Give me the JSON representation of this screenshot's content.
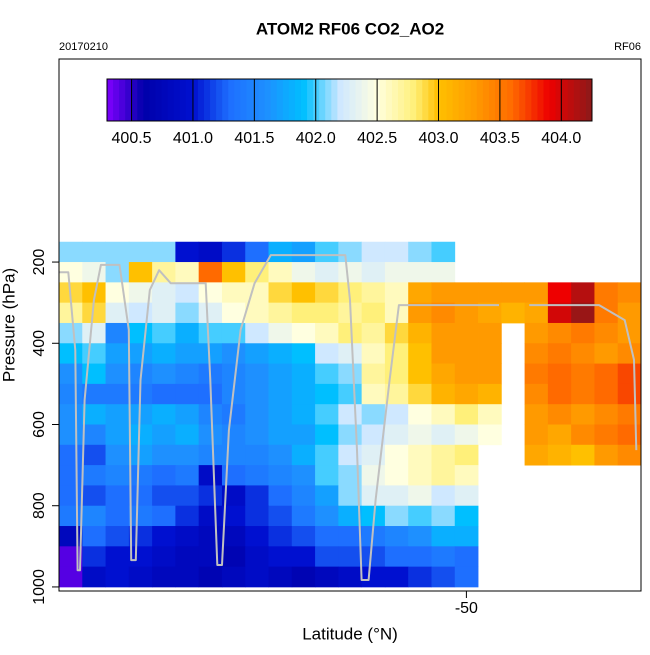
{
  "chart_data": {
    "type": "heatmap",
    "title": "ATOM2 RF06 CO2_AO2",
    "date_label": "20170210",
    "flight_label": "RF06",
    "xlabel": "Latitude (°N)",
    "ylabel": "Pressure (hPa)",
    "xlim": [
      -67.5,
      -42.5
    ],
    "xticks": [
      -50
    ],
    "ylim": [
      1010,
      -300
    ],
    "yticks": [
      200,
      400,
      600,
      800,
      1000
    ],
    "x": [
      -67,
      -66,
      -65,
      -64,
      -63,
      -62,
      -61,
      -60,
      -59,
      -58,
      -57,
      -56,
      -55,
      -54,
      -53,
      -52,
      -51,
      -50,
      -49,
      -48,
      -47,
      -46,
      -45,
      -44,
      -43
    ],
    "y": [
      175,
      225,
      275,
      325,
      375,
      425,
      475,
      525,
      575,
      625,
      675,
      725,
      775,
      825,
      875,
      925,
      975
    ],
    "values": [
      [
        402.1,
        402.1,
        402.1,
        402.1,
        402.1,
        401.0,
        400.9,
        401.1,
        401.3,
        401.8,
        401.7,
        402.0,
        402.1,
        402.2,
        402.2,
        402.1,
        402.0,
        null,
        null,
        null,
        null,
        null,
        null,
        null,
        null
      ],
      [
        402.5,
        402.4,
        402.1,
        403.0,
        402.7,
        402.6,
        403.6,
        403.0,
        402.8,
        402.6,
        402.4,
        402.3,
        402.4,
        402.3,
        402.4,
        402.4,
        402.4,
        null,
        null,
        null,
        null,
        null,
        null,
        null,
        null
      ],
      [
        402.9,
        403.0,
        402.5,
        402.4,
        402.3,
        402.2,
        402.5,
        402.6,
        402.6,
        402.9,
        403.0,
        402.9,
        402.8,
        402.7,
        402.6,
        403.2,
        403.3,
        403.3,
        403.3,
        403.3,
        403.3,
        403.9,
        404.1,
        403.5,
        403.4
      ],
      [
        402.7,
        402.9,
        402.3,
        402.2,
        402.3,
        402.1,
        402.3,
        402.5,
        402.6,
        402.7,
        402.8,
        402.8,
        402.7,
        402.8,
        402.6,
        403.3,
        403.4,
        403.3,
        403.2,
        403.1,
        403.2,
        404.0,
        404.2,
        403.5,
        403.3
      ],
      [
        402.1,
        402.3,
        401.5,
        401.9,
        402.0,
        401.8,
        402.0,
        402.0,
        402.2,
        402.4,
        402.5,
        402.6,
        402.8,
        402.7,
        402.9,
        403.1,
        403.3,
        403.3,
        403.3,
        null,
        403.3,
        403.4,
        403.5,
        403.4,
        403.3
      ],
      [
        401.9,
        402.0,
        401.7,
        401.7,
        401.8,
        401.7,
        401.7,
        401.6,
        401.7,
        401.8,
        401.9,
        402.2,
        402.3,
        402.6,
        402.8,
        403.0,
        403.3,
        403.3,
        403.3,
        null,
        403.4,
        403.5,
        403.4,
        403.3,
        403.4
      ],
      [
        401.6,
        401.9,
        401.6,
        401.5,
        401.6,
        401.5,
        401.4,
        401.5,
        401.6,
        401.7,
        401.8,
        402.0,
        402.1,
        402.7,
        402.8,
        403.0,
        403.2,
        403.3,
        403.3,
        null,
        403.5,
        403.6,
        403.5,
        403.6,
        403.7
      ],
      [
        401.5,
        401.4,
        401.4,
        401.4,
        401.3,
        401.3,
        401.3,
        401.5,
        401.6,
        401.7,
        401.8,
        401.9,
        402.0,
        402.6,
        402.7,
        402.9,
        403.1,
        403.2,
        403.1,
        null,
        403.4,
        403.6,
        403.5,
        403.6,
        403.7
      ],
      [
        401.6,
        401.8,
        401.7,
        401.7,
        401.8,
        401.7,
        401.5,
        401.4,
        401.6,
        401.7,
        401.8,
        402.0,
        402.2,
        402.1,
        402.2,
        402.5,
        402.6,
        402.8,
        402.6,
        null,
        403.3,
        403.4,
        403.3,
        403.4,
        403.5
      ],
      [
        401.6,
        401.5,
        401.7,
        401.8,
        401.7,
        401.8,
        401.6,
        401.5,
        401.6,
        401.7,
        401.7,
        401.9,
        402.1,
        402.2,
        402.3,
        402.4,
        402.3,
        402.4,
        402.5,
        null,
        403.3,
        403.2,
        403.4,
        403.5,
        403.6
      ],
      [
        401.3,
        401.2,
        401.6,
        401.7,
        401.6,
        401.6,
        401.5,
        401.5,
        401.5,
        401.6,
        401.8,
        402.0,
        402.2,
        402.3,
        402.5,
        402.6,
        402.7,
        402.8,
        null,
        null,
        403.2,
        403.1,
        403.0,
        403.3,
        403.4
      ],
      [
        401.3,
        401.4,
        401.5,
        401.4,
        401.3,
        401.4,
        400.9,
        401.3,
        401.4,
        401.5,
        401.6,
        402.0,
        402.1,
        402.4,
        402.5,
        402.6,
        402.7,
        402.6,
        null,
        null,
        null,
        null,
        null,
        null,
        null
      ],
      [
        401.3,
        401.2,
        401.3,
        401.3,
        401.2,
        401.2,
        401.1,
        400.9,
        401.1,
        401.3,
        401.5,
        401.7,
        402.1,
        402.3,
        402.3,
        402.4,
        402.2,
        402.3,
        null,
        null,
        null,
        null,
        null,
        null,
        null
      ],
      [
        401.4,
        401.5,
        401.3,
        401.4,
        401.3,
        401.1,
        400.9,
        401.0,
        401.1,
        401.2,
        401.4,
        401.6,
        401.8,
        401.9,
        402.1,
        402.0,
        402.1,
        401.9,
        null,
        null,
        null,
        null,
        null,
        null,
        null
      ],
      [
        400.8,
        401.3,
        401.2,
        401.1,
        401.0,
        400.9,
        400.8,
        400.8,
        401.0,
        401.1,
        401.2,
        401.3,
        401.3,
        401.4,
        401.5,
        401.6,
        401.8,
        401.8,
        null,
        null,
        null,
        null,
        null,
        null,
        null
      ],
      [
        400.4,
        401.1,
        401.0,
        401.0,
        400.9,
        400.8,
        400.8,
        400.7,
        400.9,
        401.0,
        401.0,
        401.2,
        401.2,
        401.2,
        401.3,
        401.3,
        401.4,
        401.3,
        null,
        null,
        null,
        null,
        null,
        null,
        null
      ],
      [
        400.4,
        400.9,
        401.0,
        400.9,
        400.8,
        400.8,
        400.7,
        400.8,
        400.9,
        400.8,
        400.7,
        400.8,
        400.9,
        401.0,
        401.0,
        401.1,
        401.2,
        401.3,
        null,
        null,
        null,
        null,
        null,
        null,
        null
      ]
    ],
    "colorscale": [
      [
        400.3,
        "#7f00ff"
      ],
      [
        400.6,
        "#0000aa"
      ],
      [
        401.0,
        "#0010d0"
      ],
      [
        401.3,
        "#1e6fff"
      ],
      [
        401.6,
        "#1e90ff"
      ],
      [
        401.9,
        "#00bfff"
      ],
      [
        402.2,
        "#cfe8ff"
      ],
      [
        402.5,
        "#ffffe0"
      ],
      [
        402.8,
        "#fff07a"
      ],
      [
        403.0,
        "#ffc000"
      ],
      [
        403.3,
        "#ff9a00"
      ],
      [
        403.6,
        "#ff6a00"
      ],
      [
        403.9,
        "#ee0000"
      ],
      [
        404.25,
        "#8b1a1a"
      ]
    ],
    "colorbar_lim": [
      400.3,
      404.25
    ],
    "colorbar_ticks": [
      400.5,
      {
        "value": 401,
        "label": "401.0"
      },
      401.5,
      {
        "value": 402,
        "label": "402.0"
      },
      402.5,
      {
        "value": 403,
        "label": "403.0"
      },
      403.5,
      {
        "value": 404,
        "label": "404.0"
      }
    ],
    "track": {
      "color": "#c0c0c0",
      "x": [
        -67.5,
        -67.1,
        -66.8,
        -66.7,
        -66.6,
        -66.4,
        -66.0,
        -65.7,
        -64.9,
        -64.5,
        -64.4,
        -64.2,
        -64.0,
        -63.6,
        -63.2,
        -62.7,
        -61.2,
        -61.0,
        -60.7,
        -60.5,
        -60.2,
        -59.7,
        -59.1,
        -58.4,
        -55.2,
        -55.0,
        -54.7,
        -54.5,
        -54.2,
        -53.9,
        -53.3,
        -52.9,
        -48.6,
        null,
        -47.3,
        -44.3,
        -43.2,
        -42.8,
        -42.7
      ],
      "y": [
        225,
        225,
        417,
        959,
        959,
        540,
        294,
        207,
        207,
        367,
        934,
        934,
        491,
        269,
        220,
        252,
        252,
        491,
        946,
        946,
        614,
        367,
        252,
        183,
        183,
        294,
        663,
        983,
        983,
        786,
        491,
        306,
        306,
        null,
        306,
        306,
        343,
        441,
        663
      ]
    }
  }
}
